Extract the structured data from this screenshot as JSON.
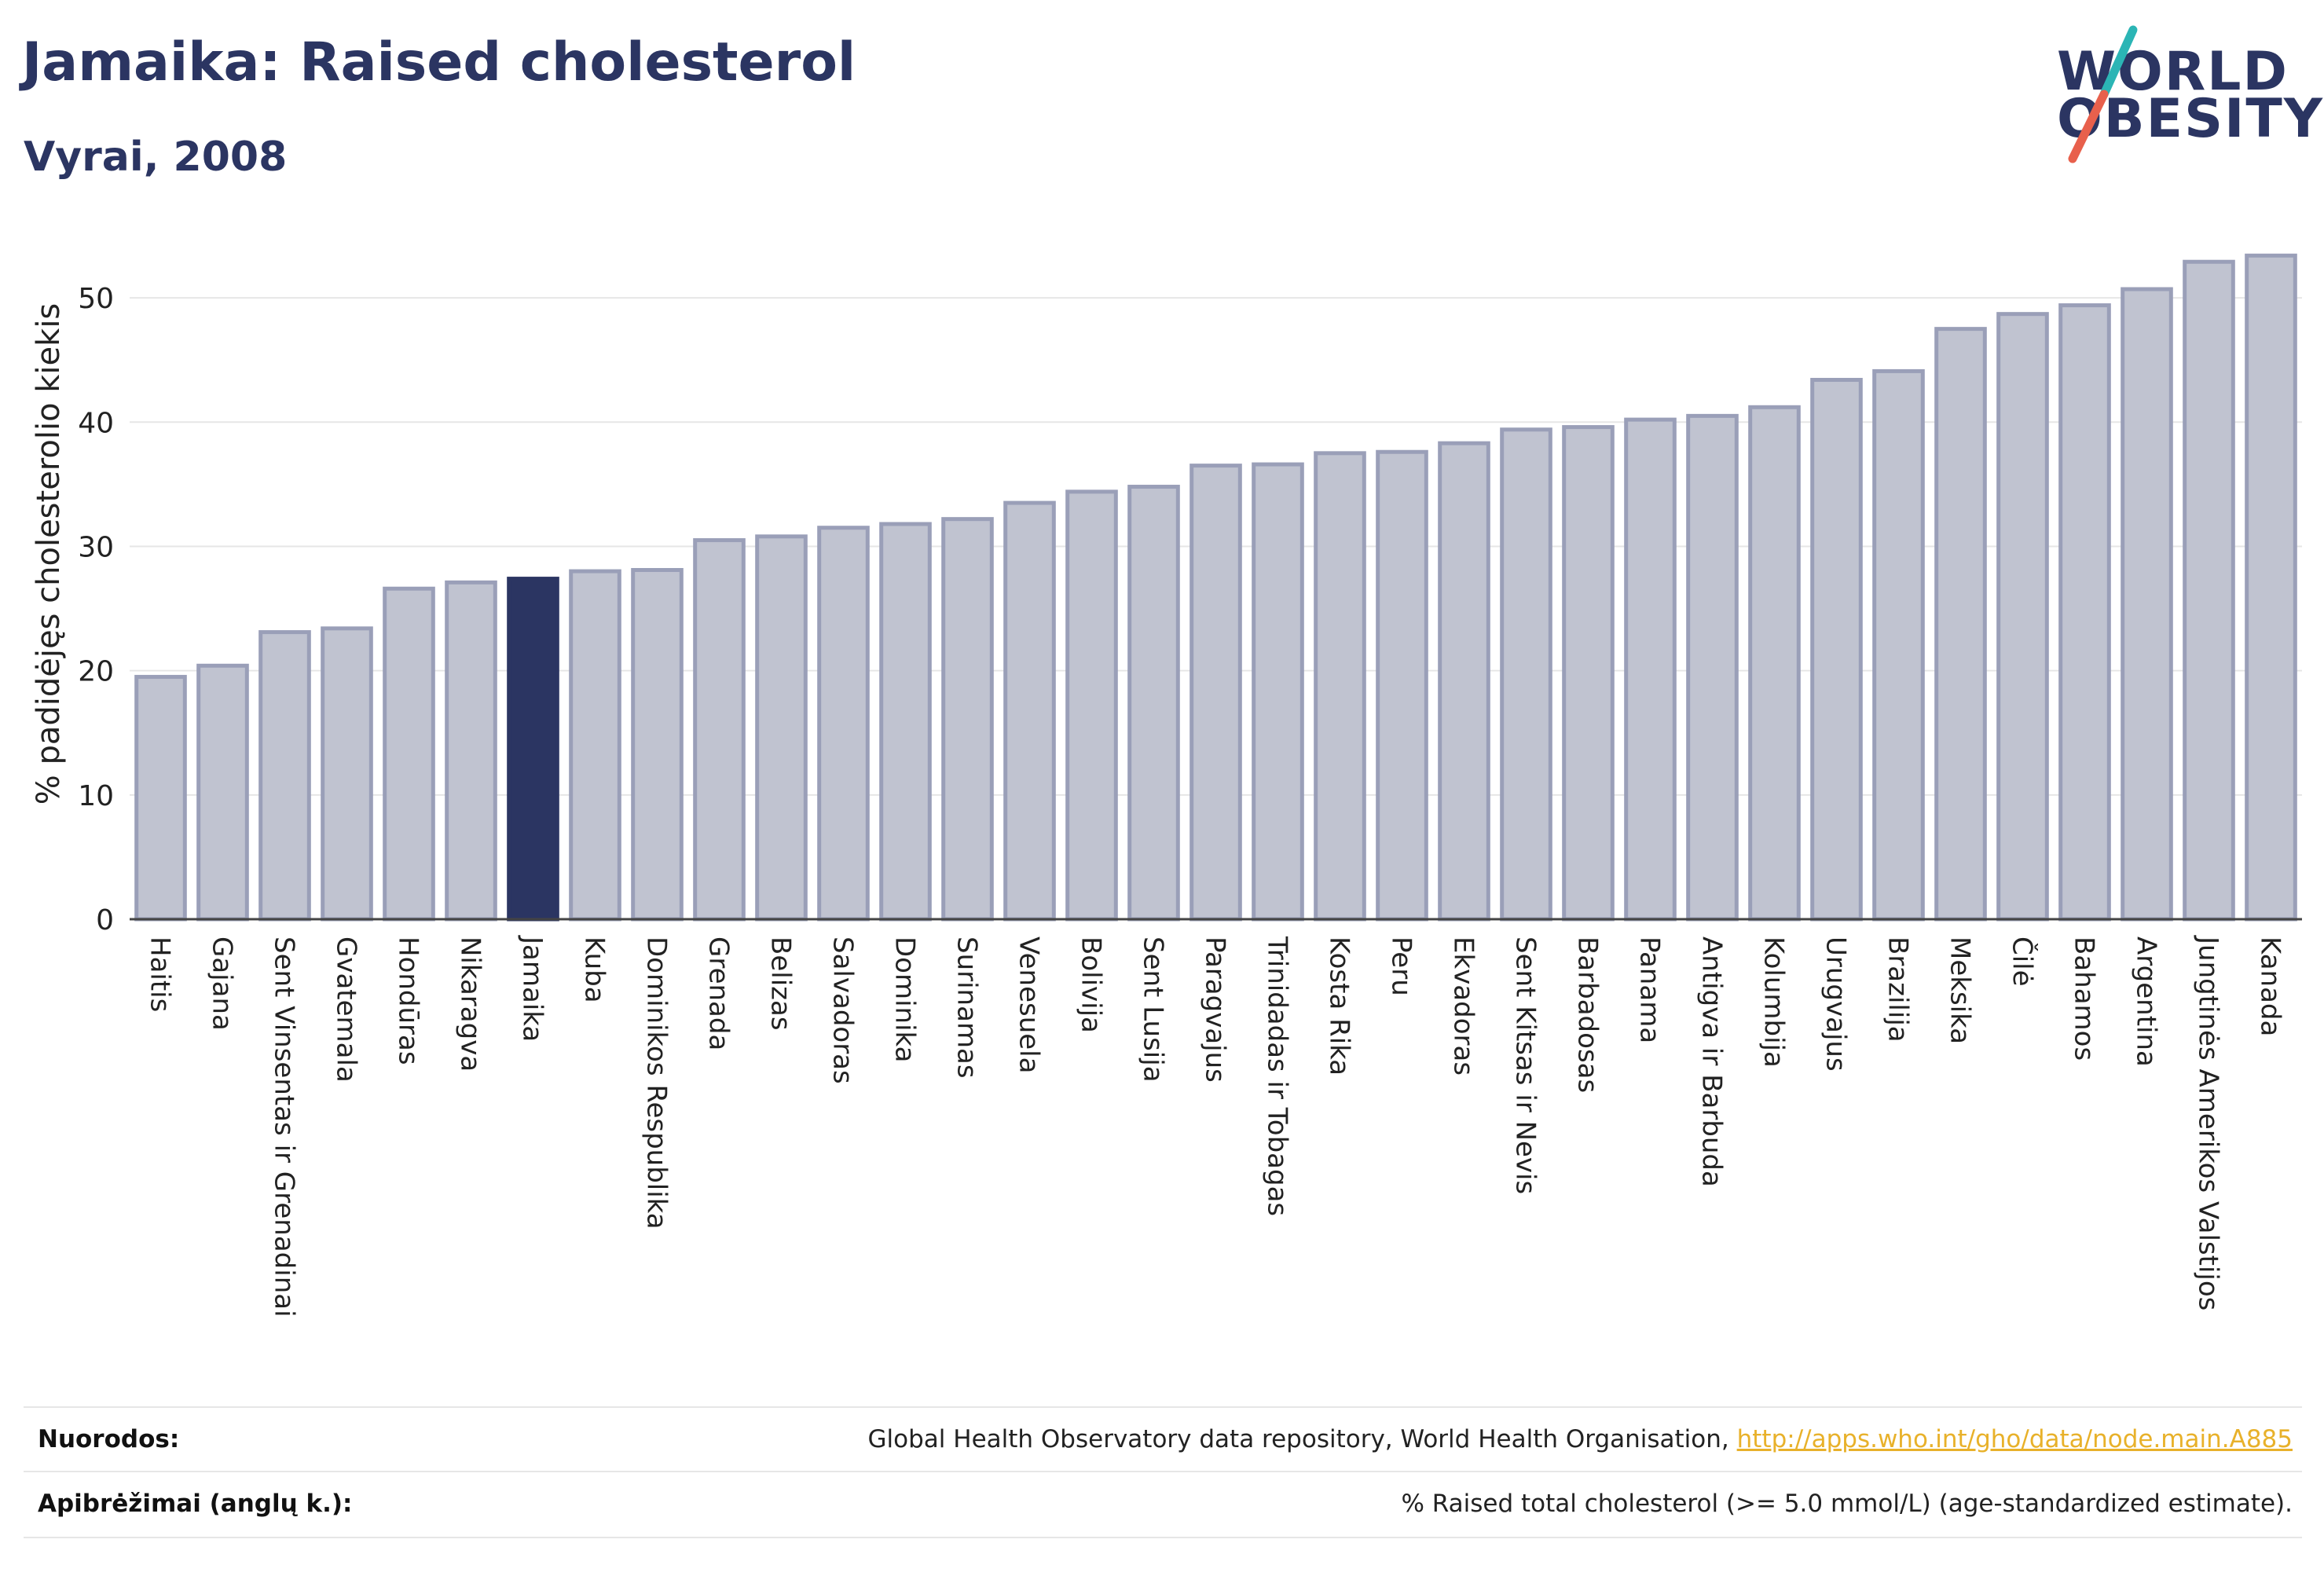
{
  "header": {
    "title": "Jamaika: Raised cholesterol",
    "subtitle": "Vyrai, 2008"
  },
  "logo": {
    "line1": "WORLD",
    "line2": "OBESITY",
    "accent_colors": [
      "#2bb5b5",
      "#e8604c"
    ]
  },
  "footer": {
    "sources_label": "Nuorodos:",
    "sources_text": "Global Health Observatory data repository, World Health Organisation, ",
    "sources_link": "http://apps.who.int/gho/data/node.main.A885",
    "definitions_label": "Apibrėžimai (anglų k.):",
    "definitions_text": "% Raised total cholesterol (>= 5.0 mmol/L) (age-standardized estimate)."
  },
  "colors": {
    "bar_fill": "#c0c3d0",
    "bar_stroke": "#9a9fb8",
    "highlight": "#2b3562",
    "grid": "#e6e6e6"
  },
  "chart_data": {
    "type": "bar",
    "title": "Jamaika: Raised cholesterol",
    "subtitle": "Vyrai, 2008",
    "xlabel": "",
    "ylabel": "% padidėjęs cholesterolio kiekis",
    "ylim": [
      0,
      55
    ],
    "yticks": [
      0,
      10,
      20,
      30,
      40,
      50
    ],
    "grid": true,
    "highlight": "Jamaika",
    "categories": [
      "Haitis",
      "Gajana",
      "Sent Vinsentas ir Grenadinai",
      "Gvatemala",
      "Hondūras",
      "Nikaragva",
      "Jamaika",
      "Kuba",
      "Dominikos Respublika",
      "Grenada",
      "Belizas",
      "Salvadoras",
      "Dominika",
      "Surinamas",
      "Venesuela",
      "Bolivija",
      "Sent Lusija",
      "Paragvajus",
      "Trinidadas ir Tobagas",
      "Kosta Rika",
      "Peru",
      "Ekvadoras",
      "Sent Kitsas ir Nevis",
      "Barbadosas",
      "Panama",
      "Antigva ir Barbuda",
      "Kolumbija",
      "Urugvajus",
      "Brazilija",
      "Meksika",
      "Čilė",
      "Bahamos",
      "Argentina",
      "Jungtinės Amerikos Valstijos",
      "Kanada"
    ],
    "values": [
      19.5,
      20.4,
      23.1,
      23.4,
      26.6,
      27.1,
      27.4,
      28.0,
      28.1,
      30.5,
      30.8,
      31.5,
      31.8,
      32.2,
      33.5,
      34.4,
      34.8,
      36.5,
      36.6,
      37.5,
      37.6,
      38.3,
      39.4,
      39.6,
      40.2,
      40.5,
      41.2,
      43.4,
      44.1,
      47.5,
      48.7,
      49.4,
      50.7,
      52.9,
      53.4
    ]
  }
}
